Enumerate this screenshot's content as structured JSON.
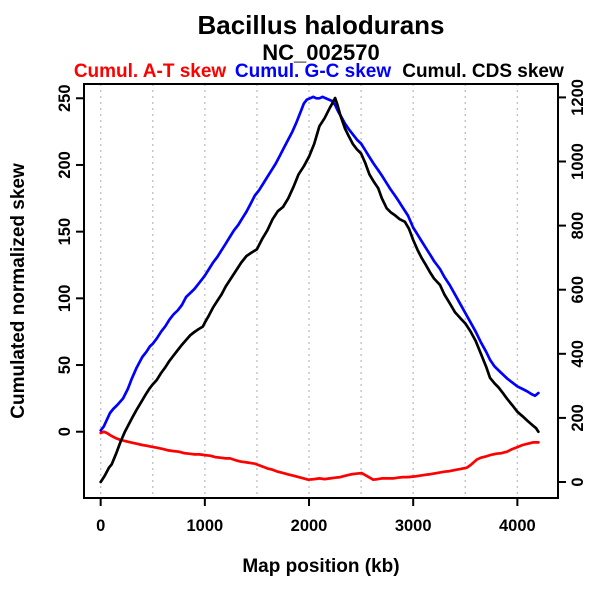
{
  "chart_data": {
    "type": "line",
    "title": "Bacillus halodurans",
    "subtitle": "NC_002570",
    "xlabel": "Map position (kb)",
    "ylabel_left": "Cumulated normalized skew",
    "xlim": [
      -160,
      4390
    ],
    "ylim_left": [
      -49.7,
      260.7
    ],
    "ylim_right": [
      -49.9,
      1241.8
    ],
    "x_ticks": [
      0,
      1000,
      2000,
      3000,
      4000
    ],
    "y_ticks_left": [
      0,
      50,
      100,
      150,
      200,
      250
    ],
    "y_ticks_right": [
      0,
      200,
      400,
      600,
      800,
      1000,
      1200
    ],
    "x_gridlines": [
      0,
      500,
      1000,
      1500,
      2000,
      2500,
      3000,
      3500,
      4000
    ],
    "grid_style": "vertical-dotted-gray",
    "gridline_color": "#c4c4c4",
    "frame_color": "#000000",
    "legend_position": "top",
    "series": [
      {
        "name": "Cumul. A-T skew",
        "color": "#ff0000",
        "axis": "left",
        "points": [
          [
            0,
            -1
          ],
          [
            30,
            0
          ],
          [
            60,
            -1
          ],
          [
            100,
            -3
          ],
          [
            150,
            -5
          ],
          [
            185,
            -6
          ],
          [
            233,
            -7
          ],
          [
            290,
            -8
          ],
          [
            345,
            -9
          ],
          [
            400,
            -10
          ],
          [
            440,
            -10.5
          ],
          [
            473,
            -11
          ],
          [
            538,
            -12
          ],
          [
            600,
            -13
          ],
          [
            650,
            -14
          ],
          [
            700,
            -14.5
          ],
          [
            750,
            -15
          ],
          [
            800,
            -16
          ],
          [
            850,
            -16.5
          ],
          [
            900,
            -17
          ],
          [
            950,
            -17
          ],
          [
            1000,
            -17.5
          ],
          [
            1050,
            -18
          ],
          [
            1100,
            -19
          ],
          [
            1150,
            -19.5
          ],
          [
            1200,
            -20
          ],
          [
            1241,
            -20
          ],
          [
            1300,
            -21.5
          ],
          [
            1350,
            -22.5
          ],
          [
            1400,
            -23
          ],
          [
            1481,
            -24
          ],
          [
            1550,
            -26
          ],
          [
            1600,
            -27.5
          ],
          [
            1650,
            -28.5
          ],
          [
            1700,
            -30
          ],
          [
            1753,
            -31
          ],
          [
            1800,
            -32
          ],
          [
            1850,
            -33
          ],
          [
            1900,
            -34
          ],
          [
            1950,
            -35
          ],
          [
            1993,
            -36
          ],
          [
            2050,
            -35.5
          ],
          [
            2100,
            -35
          ],
          [
            2150,
            -35.5
          ],
          [
            2201,
            -35
          ],
          [
            2250,
            -34.5
          ],
          [
            2300,
            -34
          ],
          [
            2350,
            -33
          ],
          [
            2400,
            -32
          ],
          [
            2450,
            -31.5
          ],
          [
            2505,
            -31
          ],
          [
            2550,
            -33
          ],
          [
            2617,
            -36
          ],
          [
            2660,
            -35.5
          ],
          [
            2700,
            -35
          ],
          [
            2750,
            -35
          ],
          [
            2809,
            -35
          ],
          [
            2850,
            -34.5
          ],
          [
            2900,
            -34
          ],
          [
            2950,
            -34
          ],
          [
            3017,
            -33.5
          ],
          [
            3100,
            -32.5
          ],
          [
            3150,
            -32
          ],
          [
            3226,
            -31
          ],
          [
            3300,
            -30
          ],
          [
            3350,
            -29.5
          ],
          [
            3417,
            -28.5
          ],
          [
            3450,
            -28
          ],
          [
            3514,
            -27
          ],
          [
            3550,
            -25
          ],
          [
            3609,
            -21
          ],
          [
            3650,
            -19.5
          ],
          [
            3700,
            -18.5
          ],
          [
            3737,
            -17.5
          ],
          [
            3800,
            -16.5
          ],
          [
            3850,
            -16
          ],
          [
            3900,
            -15
          ],
          [
            3950,
            -13
          ],
          [
            4000,
            -11.5
          ],
          [
            4050,
            -10
          ],
          [
            4100,
            -9
          ],
          [
            4150,
            -8
          ],
          [
            4202,
            -8
          ]
        ]
      },
      {
        "name": "Cumul. G-C skew",
        "color": "#0000ff",
        "axis": "left",
        "points": [
          [
            0,
            1
          ],
          [
            30,
            4
          ],
          [
            60,
            9
          ],
          [
            90,
            14
          ],
          [
            120,
            17
          ],
          [
            160,
            20
          ],
          [
            215,
            25
          ],
          [
            260,
            32
          ],
          [
            300,
            40
          ],
          [
            345,
            48
          ],
          [
            400,
            56
          ],
          [
            440,
            60
          ],
          [
            473,
            64
          ],
          [
            500,
            66
          ],
          [
            540,
            70
          ],
          [
            580,
            75
          ],
          [
            620,
            79
          ],
          [
            660,
            84
          ],
          [
            700,
            88
          ],
          [
            740,
            91
          ],
          [
            780,
            95
          ],
          [
            820,
            101
          ],
          [
            860,
            104
          ],
          [
            900,
            107
          ],
          [
            940,
            111
          ],
          [
            980,
            115
          ],
          [
            1000,
            117
          ],
          [
            1040,
            122
          ],
          [
            1080,
            127
          ],
          [
            1120,
            131
          ],
          [
            1160,
            136
          ],
          [
            1200,
            141
          ],
          [
            1240,
            146
          ],
          [
            1280,
            151
          ],
          [
            1320,
            155
          ],
          [
            1360,
            160
          ],
          [
            1400,
            165
          ],
          [
            1440,
            171
          ],
          [
            1480,
            177
          ],
          [
            1520,
            181
          ],
          [
            1560,
            186
          ],
          [
            1600,
            191
          ],
          [
            1640,
            196
          ],
          [
            1680,
            201
          ],
          [
            1720,
            207
          ],
          [
            1760,
            213
          ],
          [
            1800,
            219
          ],
          [
            1840,
            225
          ],
          [
            1880,
            232
          ],
          [
            1920,
            240
          ],
          [
            1950,
            246
          ],
          [
            1980,
            249
          ],
          [
            2010,
            250
          ],
          [
            2040,
            251
          ],
          [
            2070,
            250
          ],
          [
            2100,
            250
          ],
          [
            2130,
            251
          ],
          [
            2160,
            250
          ],
          [
            2190,
            249
          ],
          [
            2220,
            248
          ],
          [
            2250,
            245
          ],
          [
            2280,
            240
          ],
          [
            2310,
            236
          ],
          [
            2345,
            231
          ],
          [
            2380,
            227
          ],
          [
            2420,
            223
          ],
          [
            2460,
            219
          ],
          [
            2500,
            216
          ],
          [
            2540,
            211
          ],
          [
            2580,
            206
          ],
          [
            2620,
            201
          ],
          [
            2665,
            196
          ],
          [
            2700,
            192
          ],
          [
            2740,
            187
          ],
          [
            2780,
            182
          ],
          [
            2825,
            177
          ],
          [
            2860,
            173
          ],
          [
            2900,
            168
          ],
          [
            2950,
            162
          ],
          [
            3000,
            153
          ],
          [
            3040,
            148
          ],
          [
            3080,
            143
          ],
          [
            3120,
            138
          ],
          [
            3160,
            133
          ],
          [
            3200,
            128
          ],
          [
            3257,
            122
          ],
          [
            3300,
            116
          ],
          [
            3350,
            110
          ],
          [
            3400,
            103
          ],
          [
            3450,
            96
          ],
          [
            3500,
            89
          ],
          [
            3550,
            82
          ],
          [
            3600,
            75
          ],
          [
            3650,
            67
          ],
          [
            3700,
            60
          ],
          [
            3737,
            54
          ],
          [
            3780,
            49
          ],
          [
            3820,
            46
          ],
          [
            3860,
            43
          ],
          [
            3900,
            40
          ],
          [
            3950,
            37
          ],
          [
            4000,
            34
          ],
          [
            4050,
            32
          ],
          [
            4100,
            30
          ],
          [
            4140,
            28
          ],
          [
            4170,
            27
          ],
          [
            4202,
            29
          ]
        ]
      },
      {
        "name": "Cumul. CDS skew",
        "color": "#000000",
        "axis": "right",
        "points": [
          [
            0,
            0
          ],
          [
            40,
            20
          ],
          [
            80,
            45
          ],
          [
            106,
            55
          ],
          [
            150,
            90
          ],
          [
            190,
            125
          ],
          [
            233,
            157
          ],
          [
            270,
            180
          ],
          [
            310,
            205
          ],
          [
            350,
            228
          ],
          [
            390,
            250
          ],
          [
            430,
            272
          ],
          [
            470,
            292
          ],
          [
            500,
            305
          ],
          [
            538,
            318
          ],
          [
            580,
            340
          ],
          [
            620,
            358
          ],
          [
            660,
            378
          ],
          [
            700,
            395
          ],
          [
            740,
            412
          ],
          [
            780,
            428
          ],
          [
            820,
            443
          ],
          [
            860,
            458
          ],
          [
            900,
            468
          ],
          [
            940,
            477
          ],
          [
            980,
            485
          ],
          [
            1000,
            497
          ],
          [
            1040,
            520
          ],
          [
            1080,
            545
          ],
          [
            1120,
            565
          ],
          [
            1160,
            585
          ],
          [
            1200,
            610
          ],
          [
            1250,
            635
          ],
          [
            1300,
            660
          ],
          [
            1350,
            685
          ],
          [
            1400,
            705
          ],
          [
            1450,
            716
          ],
          [
            1500,
            726
          ],
          [
            1550,
            758
          ],
          [
            1600,
            785
          ],
          [
            1650,
            820
          ],
          [
            1700,
            845
          ],
          [
            1750,
            858
          ],
          [
            1800,
            885
          ],
          [
            1850,
            920
          ],
          [
            1900,
            960
          ],
          [
            1950,
            985
          ],
          [
            2000,
            1015
          ],
          [
            2050,
            1055
          ],
          [
            2100,
            1110
          ],
          [
            2150,
            1135
          ],
          [
            2200,
            1168
          ],
          [
            2230,
            1185
          ],
          [
            2250,
            1198
          ],
          [
            2270,
            1180
          ],
          [
            2300,
            1145
          ],
          [
            2345,
            1103
          ],
          [
            2380,
            1080
          ],
          [
            2420,
            1055
          ],
          [
            2460,
            1038
          ],
          [
            2500,
            1025
          ],
          [
            2540,
            995
          ],
          [
            2580,
            960
          ],
          [
            2620,
            938
          ],
          [
            2665,
            916
          ],
          [
            2700,
            885
          ],
          [
            2746,
            854
          ],
          [
            2790,
            840
          ],
          [
            2825,
            832
          ],
          [
            2870,
            820
          ],
          [
            2920,
            812
          ],
          [
            2960,
            790
          ],
          [
            3000,
            755
          ],
          [
            3040,
            725
          ],
          [
            3080,
            700
          ],
          [
            3120,
            678
          ],
          [
            3160,
            655
          ],
          [
            3200,
            635
          ],
          [
            3257,
            615
          ],
          [
            3300,
            585
          ],
          [
            3350,
            558
          ],
          [
            3400,
            530
          ],
          [
            3450,
            512
          ],
          [
            3500,
            495
          ],
          [
            3550,
            470
          ],
          [
            3600,
            440
          ],
          [
            3650,
            400
          ],
          [
            3700,
            360
          ],
          [
            3737,
            325
          ],
          [
            3780,
            308
          ],
          [
            3820,
            295
          ],
          [
            3860,
            278
          ],
          [
            3900,
            260
          ],
          [
            3950,
            240
          ],
          [
            4000,
            219
          ],
          [
            4050,
            205
          ],
          [
            4100,
            190
          ],
          [
            4150,
            176
          ],
          [
            4180,
            168
          ],
          [
            4202,
            157
          ]
        ]
      }
    ]
  }
}
